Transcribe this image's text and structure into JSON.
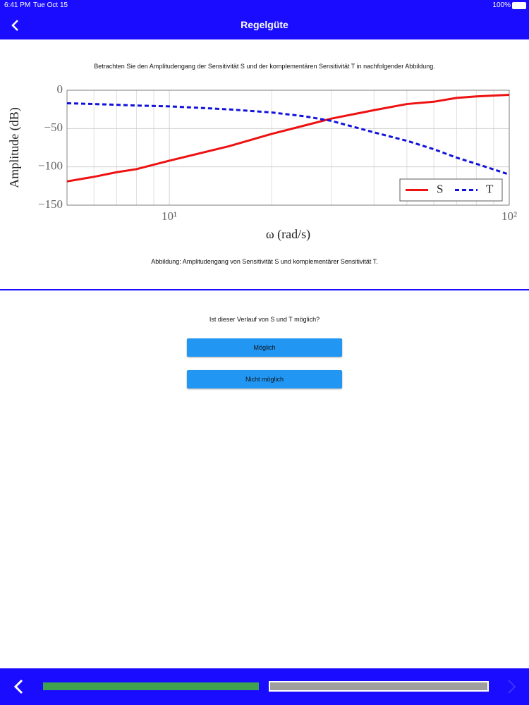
{
  "status_bar": {
    "time": "6:41 PM",
    "date": "Tue Oct 15",
    "battery": "100%"
  },
  "nav": {
    "title": "Regelgüte"
  },
  "intro": "Betrachten Sie den Amplitudengang der Sensitivität S und der komplementären Sensitivität T in nachfolgender Abbildung.",
  "chart_data": {
    "type": "line",
    "x_label": "ω (rad/s)",
    "y_label": "Amplitude (dB)",
    "x": [
      5,
      6,
      7,
      8,
      10,
      15,
      20,
      25,
      30,
      40,
      50,
      60,
      70,
      80,
      100
    ],
    "series": [
      {
        "name": "S",
        "color": "#ee1111",
        "dash": false,
        "values": [
          -119,
          -113,
          -107,
          -103,
          -92,
          -73,
          -57,
          -46,
          -37,
          -26,
          -18,
          -15,
          -10,
          -8,
          -6
        ]
      },
      {
        "name": "T",
        "color": "#1111dd",
        "dash": true,
        "values": [
          -17,
          -18,
          -19,
          -20,
          -21,
          -25,
          -29,
          -34,
          -40,
          -55,
          -66,
          -77,
          -88,
          -96,
          -110
        ]
      }
    ],
    "xlim": [
      5,
      100
    ],
    "ylim": [
      -150,
      0
    ],
    "xlog": true,
    "xticks": [
      {
        "value": 10,
        "label": "10¹"
      },
      {
        "value": 100,
        "label": "10²"
      }
    ],
    "xminorticks": [
      6,
      7,
      8,
      9,
      20,
      30,
      40,
      50,
      60,
      70,
      80,
      90
    ],
    "yticks": [
      0,
      {
        "value": -50,
        "label": "−50"
      },
      {
        "value": -100,
        "label": "−100"
      },
      {
        "value": -150,
        "label": "−150"
      }
    ],
    "grid": true,
    "legend": "lower right"
  },
  "caption": "Abbildung: Amplitudengang von Sensitivität S und komplementärer Sensitivität T.",
  "question": "Ist dieser Verlauf von S und T möglich?",
  "options": [
    "Möglich",
    "Nicht möglich"
  ]
}
